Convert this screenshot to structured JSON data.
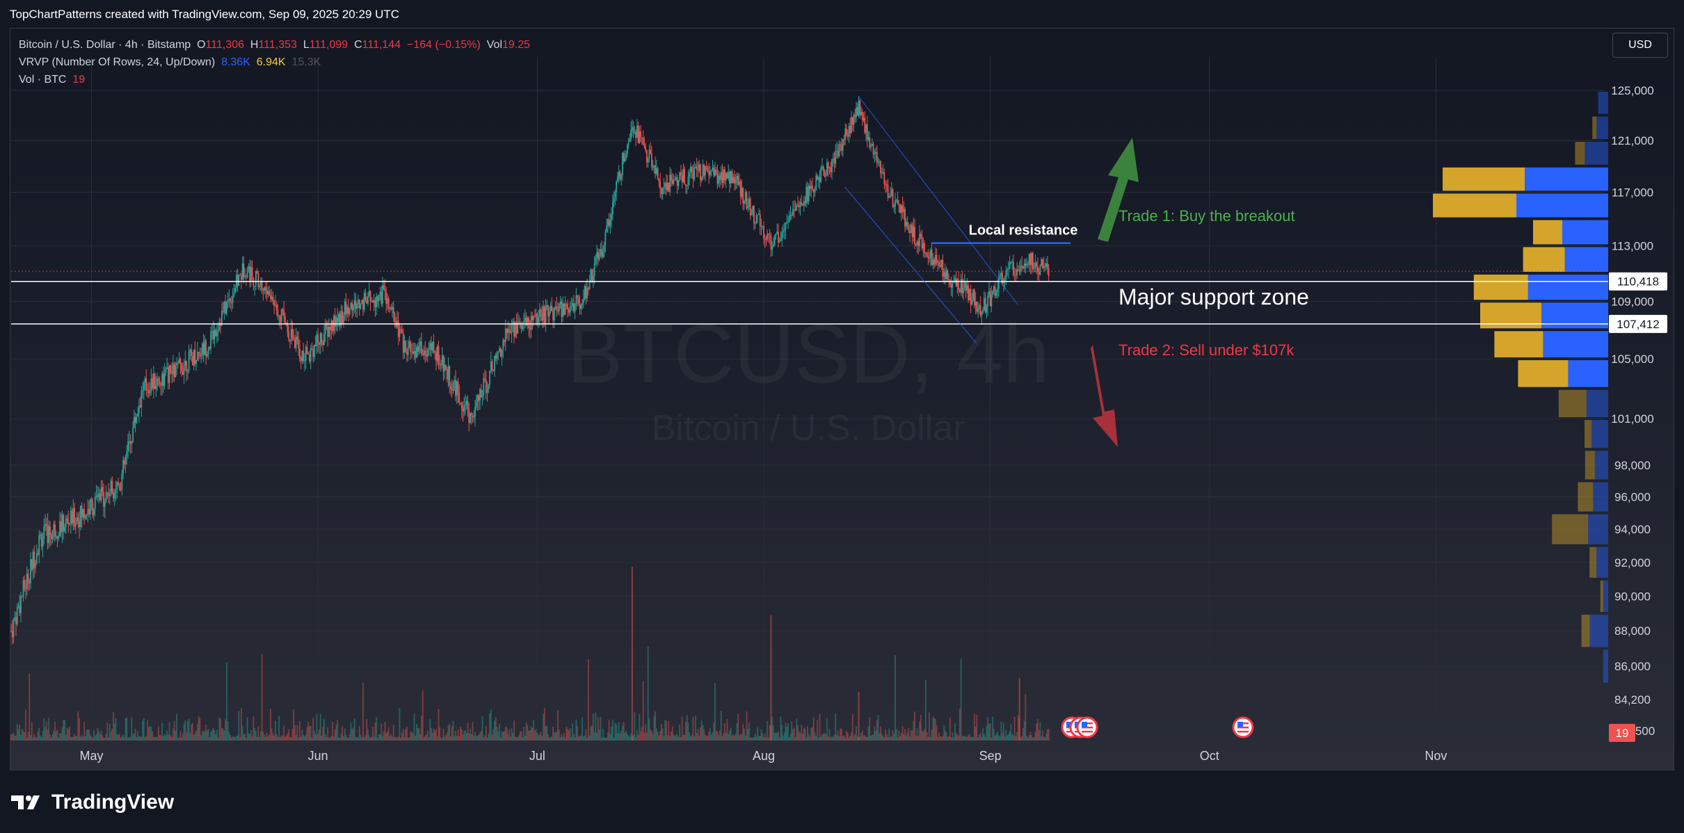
{
  "header": {
    "attribution": "TopChartPatterns created with TradingView.com, Sep 09, 2025 20:29 UTC"
  },
  "legend": {
    "symbol": "Bitcoin / U.S. Dollar · 4h · Bitstamp",
    "o_label": "O",
    "o_value": "111,306",
    "h_label": "H",
    "h_value": "111,353",
    "l_label": "L",
    "l_value": "111,099",
    "c_label": "C",
    "c_value": "111,144",
    "change": "−164 (−0.15%)",
    "vol_label": "Vol",
    "vol_value": "19.25",
    "vrvp_label": "VRVP (Number Of Rows, 24, Up/Down)",
    "vrvp_up": "8.36K",
    "vrvp_down": "6.94K",
    "vrvp_total": "15.3K",
    "vol_indicator": "Vol · BTC",
    "vol_indicator_value": "19"
  },
  "currency_button": "USD",
  "watermark": {
    "ticker": "BTCUSD, 4h",
    "name": "Bitcoin / U.S. Dollar"
  },
  "annotations": {
    "local_resistance": "Local resistance",
    "trade1": "Trade 1:  Buy the breakout",
    "support_zone": "Major support zone",
    "trade2": "Trade 2:  Sell under $107k"
  },
  "price_axis": {
    "ticks": [
      "125,000",
      "121,000",
      "117,000",
      "113,000",
      "109,000",
      "105,000",
      "101,000",
      "98,000",
      "96,000",
      "94,000",
      "92,000",
      "90,000",
      "88,000",
      "86,000",
      "84,200",
      "500"
    ],
    "support_high_label": "110,418",
    "support_low_label": "107,412",
    "volume_badge": "19"
  },
  "time_axis": {
    "labels": [
      "May",
      "Jun",
      "Jul",
      "Aug",
      "Sep",
      "Oct",
      "Nov"
    ]
  },
  "branding": {
    "name": "TradingView"
  },
  "colors": {
    "up": "#26a69a",
    "down": "#ef5350",
    "bull_arrow": "#3f8f3f",
    "bear_arrow": "#b8323d",
    "resistance": "#2962ff",
    "vrvp_up": "#2962ff",
    "vrvp_down": "#d4a52a"
  },
  "chart_data": {
    "type": "candlestick",
    "symbol": "BTCUSD",
    "timeframe": "4h",
    "ylim": [
      84200,
      125000
    ],
    "price_path": {
      "dates": [
        "2025-04-20",
        "2025-04-24",
        "2025-04-30",
        "2025-05-05",
        "2025-05-08",
        "2025-05-12",
        "2025-05-17",
        "2025-05-22",
        "2025-05-26",
        "2025-05-30",
        "2025-06-05",
        "2025-06-10",
        "2025-06-13",
        "2025-06-17",
        "2025-06-22",
        "2025-06-27",
        "2025-07-02",
        "2025-07-07",
        "2025-07-10",
        "2025-07-14",
        "2025-07-18",
        "2025-07-23",
        "2025-07-28",
        "2025-08-02",
        "2025-08-07",
        "2025-08-10",
        "2025-08-14",
        "2025-08-18",
        "2025-08-22",
        "2025-08-25",
        "2025-08-31",
        "2025-09-03",
        "2025-09-06",
        "2025-09-09"
      ],
      "close": [
        88000,
        93500,
        95000,
        97000,
        103000,
        104000,
        106000,
        111500,
        109000,
        105000,
        108500,
        109500,
        105500,
        105500,
        101000,
        107000,
        108000,
        109000,
        113000,
        122500,
        117500,
        118500,
        118000,
        113000,
        117000,
        119000,
        123500,
        117000,
        113500,
        111500,
        108500,
        111000,
        112000,
        111144
      ]
    },
    "local_resistance": 113200,
    "support_zone": [
      107412,
      110418
    ],
    "channel": {
      "start": [
        "2025-08-14",
        124500
      ],
      "end": [
        "2025-09-01",
        108500
      ]
    },
    "trade_ideas": [
      "Trade 1:  Buy the breakout",
      "Trade 2:  Sell under $107k"
    ],
    "volume_profile": {
      "price_rows": [
        124000,
        122000,
        120000,
        118000,
        116000,
        114000,
        112000,
        110000,
        108000,
        106000,
        104000,
        102000,
        100000,
        98000,
        96000,
        94000,
        92000,
        90000,
        88000,
        86000
      ],
      "up": [
        12,
        14,
        28,
        100,
        110,
        55,
        52,
        96,
        80,
        78,
        48,
        26,
        20,
        16,
        18,
        24,
        14,
        6,
        22,
        6
      ],
      "down": [
        0,
        6,
        14,
        118,
        120,
        42,
        60,
        78,
        88,
        70,
        72,
        40,
        10,
        14,
        22,
        52,
        10,
        4,
        12,
        0
      ]
    },
    "x_axis_labels": [
      "May",
      "Jun",
      "Jul",
      "Aug",
      "Sep",
      "Oct",
      "Nov"
    ]
  }
}
